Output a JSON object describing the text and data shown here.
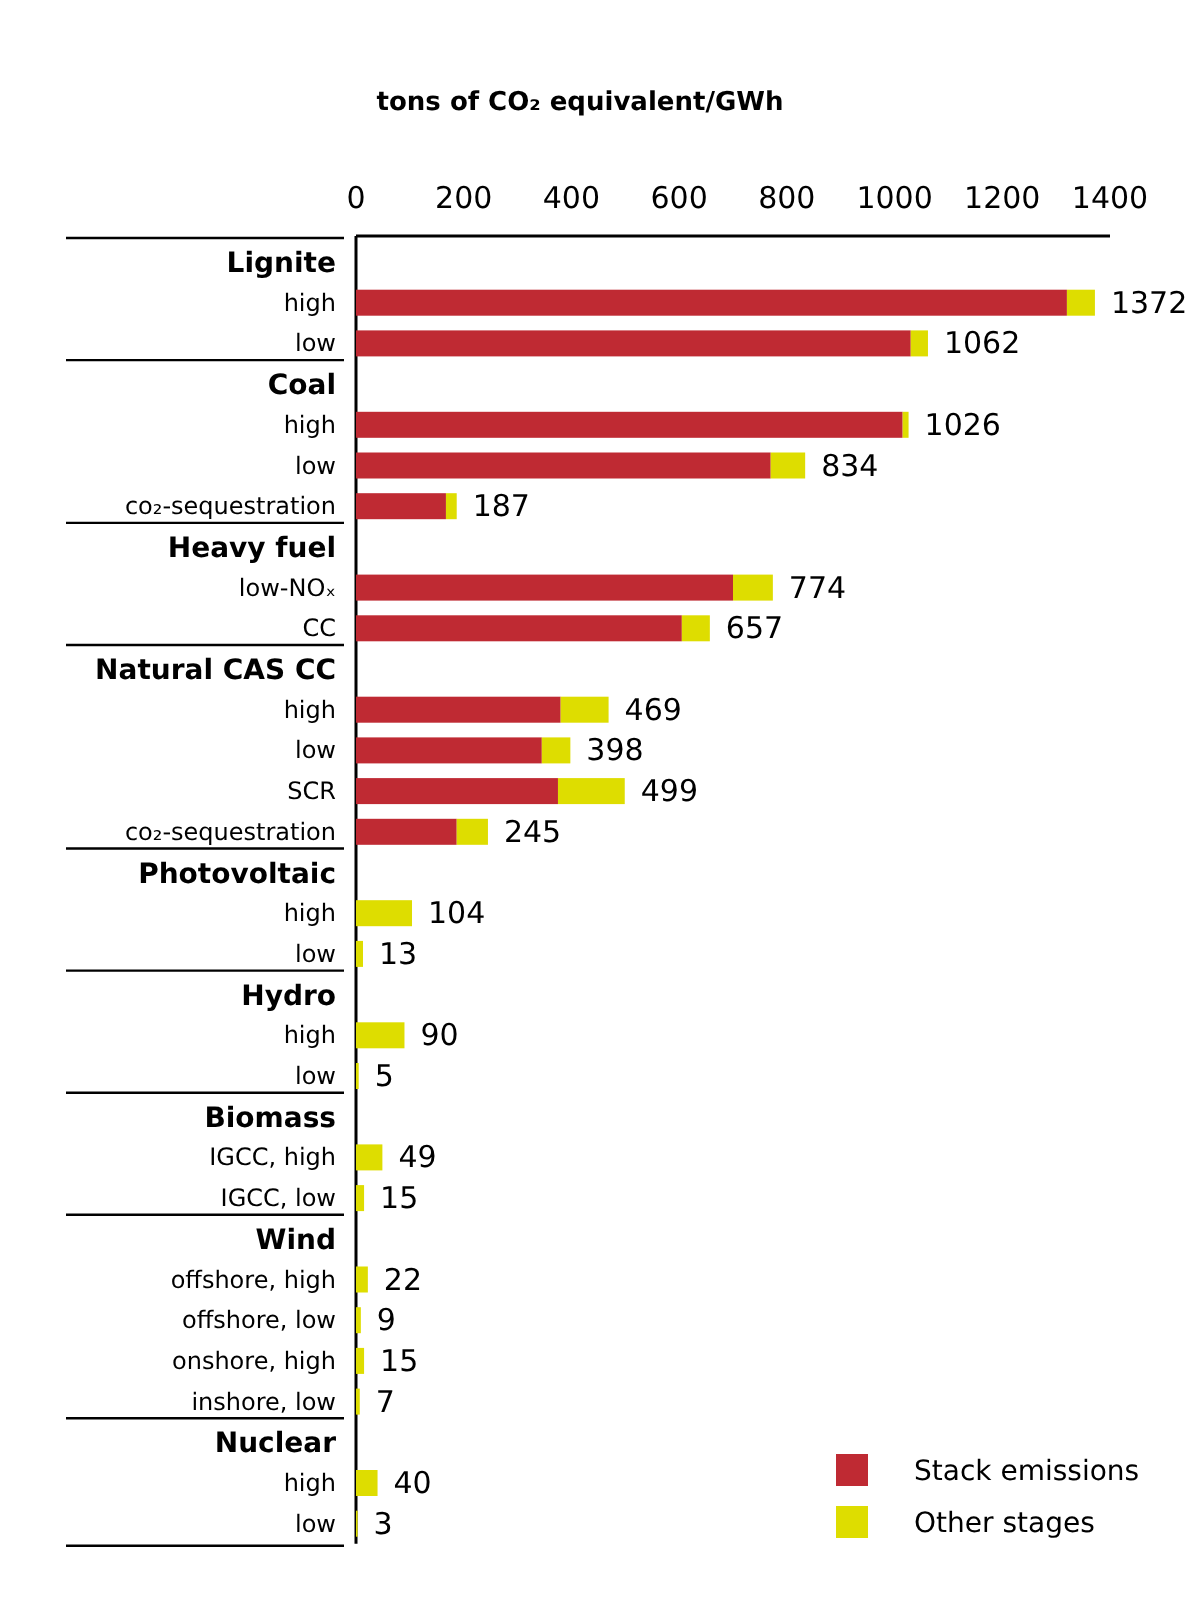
{
  "chart_data": {
    "type": "bar",
    "orientation": "horizontal",
    "stacked": true,
    "xlabel": "tons of CO₂ equivalent/GWh",
    "categories": [
      "Lignite",
      "high",
      "low",
      "Coal",
      "high",
      "low",
      "co₂-sequestration",
      "Heavy fuel",
      "low-NOₓ",
      "CC",
      "Natural CAS CC",
      "high",
      "low",
      "SCR",
      "co₂-sequestration",
      "Photovoltaic",
      "high",
      "low",
      "Hydro",
      "high",
      "low",
      "Biomass",
      "IGCC, high",
      "IGCC, low",
      "Wind",
      "offshore, high",
      "offshore, low",
      "onshore, high",
      "inshore, low",
      "Nuclear",
      "high",
      "low"
    ],
    "series": [
      {
        "name": "Stack emissions",
        "color": "#bf2a33",
        "values": [
          null,
          1320,
          1030,
          null,
          1015,
          770,
          167,
          null,
          700,
          605,
          null,
          380,
          345,
          375,
          187,
          null,
          0,
          0,
          null,
          0,
          0,
          null,
          0,
          0,
          null,
          0,
          0,
          0,
          0,
          null,
          0,
          0
        ]
      },
      {
        "name": "Other stages",
        "color": "#dedd00",
        "values": [
          null,
          52,
          32,
          null,
          11,
          64,
          20,
          null,
          74,
          52,
          null,
          89,
          53,
          124,
          58,
          null,
          104,
          13,
          null,
          90,
          5,
          null,
          49,
          15,
          null,
          22,
          9,
          15,
          7,
          null,
          40,
          3
        ]
      }
    ],
    "totals": [
      null,
      "1372",
      "1062",
      null,
      "1026",
      "834",
      "187",
      null,
      "774",
      "657",
      null,
      "469",
      "398",
      "499",
      "245",
      null,
      "104",
      "13",
      null,
      "90",
      "5",
      null,
      "49",
      "15",
      null,
      "22",
      "9",
      "15",
      "7",
      null,
      "40",
      "3"
    ],
    "xlim": [
      0,
      1400
    ],
    "xticks": [
      0,
      200,
      400,
      600,
      800,
      1000,
      1200,
      1400
    ],
    "legend": "bottom right",
    "grid": false
  }
}
